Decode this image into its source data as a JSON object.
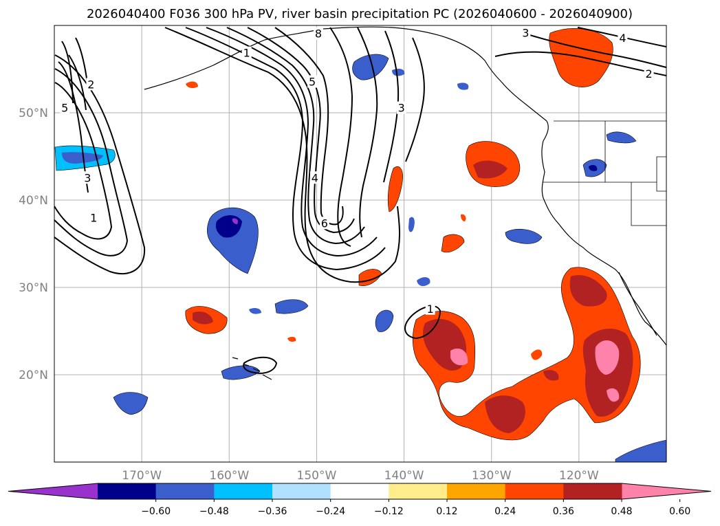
{
  "chart_data": {
    "type": "heatmap",
    "title": "2026040400 F036 300 hPa PV, river basin precipitation PC (2026040600 - 2026040900)",
    "x_range": [
      -180,
      -110
    ],
    "y_range": [
      10,
      60
    ],
    "x_ticks": [
      {
        "value": -170,
        "label": "170°W"
      },
      {
        "value": -160,
        "label": "160°W"
      },
      {
        "value": -150,
        "label": "150°W"
      },
      {
        "value": -140,
        "label": "140°W"
      },
      {
        "value": -130,
        "label": "130°W"
      },
      {
        "value": -120,
        "label": "120°W"
      }
    ],
    "y_ticks": [
      {
        "value": 50,
        "label": "50°N"
      },
      {
        "value": 40,
        "label": "40°N"
      },
      {
        "value": 30,
        "label": "30°N"
      },
      {
        "value": 20,
        "label": "20°N"
      }
    ],
    "grid": true,
    "colorbar": {
      "extend": "both",
      "levels": [
        -0.6,
        -0.48,
        -0.36,
        -0.24,
        -0.12,
        0.12,
        0.24,
        0.36,
        0.48,
        0.6
      ],
      "labels": [
        "−0.60",
        "−0.48",
        "−0.36",
        "−0.24",
        "−0.12",
        "0.12",
        "0.24",
        "0.36",
        "0.48",
        "0.60"
      ],
      "colors": [
        "#9932cc",
        "#00008b",
        "#3a5fcd",
        "#00bfff",
        "#b0e2ff",
        "#ffffff",
        "#ffec8b",
        "#ffa500",
        "#ff4500",
        "#b22222",
        "#ff82ab"
      ]
    },
    "pv_contour_labels": [
      {
        "text": "1",
        "lon": -175.5,
        "lat": 37.9
      },
      {
        "text": "3",
        "lon": -176.2,
        "lat": 42.5
      },
      {
        "text": "2",
        "lon": -175.8,
        "lat": 53.2
      },
      {
        "text": "5",
        "lon": -178.8,
        "lat": 50.5
      },
      {
        "text": "1",
        "lon": -158.0,
        "lat": 56.8
      },
      {
        "text": "5",
        "lon": -150.5,
        "lat": 53.5
      },
      {
        "text": "4",
        "lon": -150.2,
        "lat": 42.5
      },
      {
        "text": "6",
        "lon": -149.1,
        "lat": 37.3
      },
      {
        "text": "8",
        "lon": -149.8,
        "lat": 59.0
      },
      {
        "text": "3",
        "lon": -140.3,
        "lat": 50.5
      },
      {
        "text": "3",
        "lon": -126.1,
        "lat": 59.1
      },
      {
        "text": "4",
        "lon": -115.0,
        "lat": 58.5
      },
      {
        "text": "2",
        "lon": -112.0,
        "lat": 54.4
      },
      {
        "text": "1",
        "lon": -137.0,
        "lat": 27.5
      }
    ]
  }
}
